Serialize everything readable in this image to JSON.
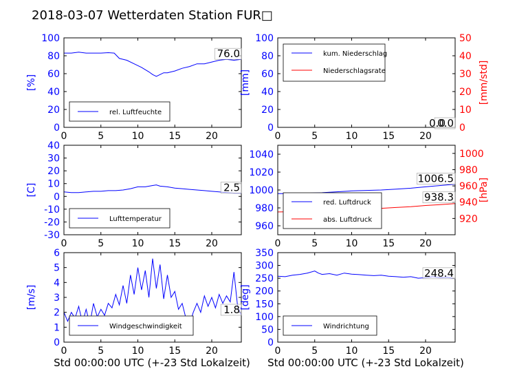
{
  "title": "2018-03-07 Wetterdaten Station FUR□",
  "colors": {
    "blue": "#0000ff",
    "red": "#ff0000",
    "black": "#000000"
  },
  "xlabel": "Std 00:00:00 UTC (+-23 Std Lokalzeit)",
  "chart_data": [
    {
      "id": "humidity",
      "type": "line",
      "ylabel": "[%]",
      "xlim": [
        0,
        24
      ],
      "ylim": [
        0,
        100
      ],
      "xticks": [
        0,
        5,
        10,
        15,
        20
      ],
      "yticks": [
        0,
        20,
        40,
        60,
        80,
        100
      ],
      "last_value_label": "76.0",
      "legend": [
        "rel. Luftfeuchte"
      ],
      "series": [
        {
          "name": "rel. Luftfeuchte",
          "color": "#0000ff",
          "x": [
            0,
            1,
            2,
            3,
            4,
            5,
            6,
            6.8,
            7.5,
            8.5,
            9.5,
            10.5,
            11.5,
            12,
            12.5,
            13,
            13.5,
            14,
            15,
            16,
            17,
            18,
            19,
            20,
            21,
            22,
            23,
            24
          ],
          "y": [
            83,
            83,
            84,
            83,
            83,
            83,
            83.5,
            83,
            77,
            75,
            71,
            67,
            62,
            59,
            57,
            59,
            61,
            61,
            63,
            66,
            68,
            71,
            71,
            73,
            75,
            76,
            75,
            76
          ]
        }
      ]
    },
    {
      "id": "precip",
      "type": "line",
      "ylabel": "[mm]",
      "ylabel_right": "[mm/std]",
      "xlim": [
        0,
        24
      ],
      "ylim": [
        0,
        100
      ],
      "ylim_right": [
        0,
        50
      ],
      "xticks": [
        0,
        5,
        10,
        15,
        20
      ],
      "yticks": [
        0,
        20,
        40,
        60,
        80,
        100
      ],
      "yticks_right": [
        0,
        10,
        20,
        30,
        40,
        50
      ],
      "last_value_label": "0.0",
      "last_value_label_right": "0.0",
      "legend": [
        "kum. Niederschlag",
        "Niederschlagsrate"
      ],
      "series": [
        {
          "name": "kum. Niederschlag",
          "color": "#0000ff",
          "axis": "left",
          "x": [
            0,
            24
          ],
          "y": [
            0,
            0
          ]
        },
        {
          "name": "Niederschlagsrate",
          "color": "#ff0000",
          "axis": "right",
          "x": [
            0,
            24
          ],
          "y": [
            0,
            0
          ]
        }
      ]
    },
    {
      "id": "temperature",
      "type": "line",
      "ylabel": "[C]",
      "xlim": [
        0,
        24
      ],
      "ylim": [
        -30,
        40
      ],
      "xticks": [
        0,
        5,
        10,
        15,
        20
      ],
      "yticks": [
        -30,
        -20,
        -10,
        0,
        10,
        20,
        30,
        40
      ],
      "last_value_label": "2.5",
      "legend": [
        "Lufttemperatur"
      ],
      "series": [
        {
          "name": "Lufttemperatur",
          "color": "#0000ff",
          "x": [
            0,
            1,
            2,
            3,
            4,
            5,
            6,
            7,
            8,
            9,
            10,
            11,
            12,
            12.5,
            13,
            14,
            15,
            16,
            17,
            18,
            19,
            20,
            21,
            22,
            23,
            24
          ],
          "y": [
            3.5,
            3,
            3,
            3.5,
            4,
            4,
            4.5,
            4.5,
            5,
            6,
            7.5,
            7.5,
            8.5,
            9,
            8,
            7.5,
            6.5,
            6,
            5.5,
            5,
            4.5,
            4,
            3.5,
            3,
            2.5,
            2.5
          ]
        }
      ]
    },
    {
      "id": "pressure",
      "type": "line",
      "ylabel_right": "[hPa]",
      "xlim": [
        0,
        24
      ],
      "ylim": [
        950,
        1050
      ],
      "ylim_right": [
        900,
        1010
      ],
      "xticks": [
        0,
        5,
        10,
        15,
        20
      ],
      "yticks": [
        960,
        980,
        1000,
        1020,
        1040
      ],
      "yticks_right": [
        920,
        940,
        960,
        980,
        1000
      ],
      "last_value_label": "1006.5",
      "last_value_label_right": "938.3",
      "legend": [
        "red. Luftdruck",
        "abs. Luftdruck"
      ],
      "series": [
        {
          "name": "red. Luftdruck",
          "color": "#0000ff",
          "axis": "left",
          "x": [
            0,
            2,
            4,
            6,
            8,
            10,
            12,
            14,
            16,
            18,
            20,
            22,
            24
          ],
          "y": [
            996,
            996,
            996.5,
            997,
            998,
            999,
            999.5,
            1000,
            1001,
            1002,
            1003.5,
            1005,
            1006.5
          ]
        }
      ],
      "series_right": [
        {
          "name": "abs. Luftdruck",
          "color": "#ff0000",
          "axis": "right",
          "x": [
            0,
            2,
            4,
            6,
            8,
            10,
            12,
            14,
            16,
            18,
            20,
            22,
            24
          ],
          "y": [
            928,
            928.3,
            929,
            929.5,
            930.5,
            931.5,
            932,
            932.5,
            933.5,
            934.5,
            936,
            937,
            938.3
          ]
        }
      ]
    },
    {
      "id": "wind_speed",
      "type": "line",
      "ylabel": "[m/s]",
      "xlim": [
        0,
        24
      ],
      "ylim": [
        0,
        6
      ],
      "xticks": [
        0,
        5,
        10,
        15,
        20
      ],
      "yticks": [
        0,
        1,
        2,
        3,
        4,
        5,
        6
      ],
      "last_value_label": "1.8",
      "legend": [
        "Windgeschwindigkeit"
      ],
      "series": [
        {
          "name": "Windgeschwindigkeit",
          "color": "#0000ff",
          "x": [
            0,
            0.5,
            1,
            1.5,
            2,
            2.5,
            3,
            3.5,
            4,
            4.5,
            5,
            5.5,
            6,
            6.5,
            7,
            7.5,
            8,
            8.5,
            9,
            9.5,
            10,
            10.5,
            11,
            11.5,
            12,
            12.5,
            13,
            13.5,
            14,
            14.5,
            15,
            15.5,
            16,
            16.5,
            17,
            17.5,
            18,
            18.5,
            19,
            19.5,
            20,
            20.5,
            21,
            21.5,
            22,
            22.5,
            23,
            23.5,
            24
          ],
          "y": [
            2.0,
            1.4,
            2.0,
            1.6,
            2.4,
            1.3,
            2.2,
            1.2,
            2.6,
            1.7,
            2.2,
            1.8,
            2.6,
            2.3,
            3.2,
            2.5,
            3.8,
            2.6,
            4.5,
            3.2,
            5.0,
            3.5,
            4.8,
            3.0,
            5.6,
            3.6,
            5.2,
            2.9,
            4.5,
            3.0,
            3.4,
            2.2,
            2.6,
            1.6,
            1.2,
            2.0,
            2.6,
            2.0,
            3.1,
            2.4,
            3.0,
            2.3,
            3.2,
            2.6,
            3.1,
            2.7,
            4.7,
            2.4,
            1.8
          ]
        }
      ]
    },
    {
      "id": "wind_direction",
      "type": "line",
      "ylabel": "[deg]",
      "xlim": [
        0,
        24
      ],
      "ylim": [
        0,
        350
      ],
      "xticks": [
        0,
        5,
        10,
        15,
        20
      ],
      "yticks": [
        0,
        50,
        100,
        150,
        200,
        250,
        300,
        350
      ],
      "last_value_label": "248.4",
      "legend": [
        "Windrichtung"
      ],
      "series": [
        {
          "name": "Windrichtung",
          "color": "#0000ff",
          "x": [
            0,
            1,
            2,
            3,
            4,
            5,
            5.5,
            6,
            7,
            8,
            9,
            10,
            11,
            12,
            13,
            14,
            15,
            16,
            17,
            18,
            19,
            20,
            21,
            22,
            23,
            24
          ],
          "y": [
            258,
            256,
            262,
            265,
            270,
            278,
            270,
            265,
            268,
            262,
            270,
            266,
            264,
            262,
            260,
            262,
            258,
            256,
            254,
            256,
            250,
            252,
            256,
            252,
            254,
            248
          ]
        }
      ]
    }
  ]
}
